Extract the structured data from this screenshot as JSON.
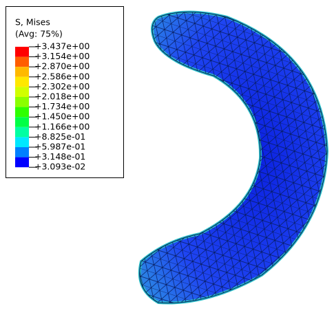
{
  "legend": {
    "title": "S, Mises",
    "subtitle": "(Avg: 75%)",
    "labels": [
      "+3.437e+00",
      "+3.154e+00",
      "+2.870e+00",
      "+2.586e+00",
      "+2.302e+00",
      "+2.018e+00",
      "+1.734e+00",
      "+1.450e+00",
      "+1.166e+00",
      "+8.825e-01",
      "+5.987e-01",
      "+3.148e-01",
      "+3.093e-02"
    ]
  }
}
